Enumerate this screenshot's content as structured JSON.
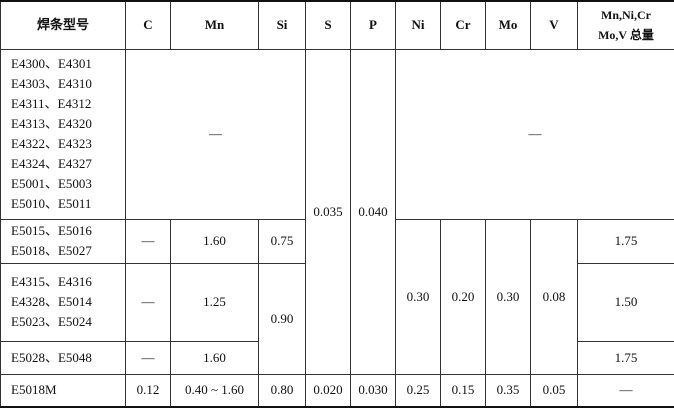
{
  "table": {
    "header": [
      "焊条型号",
      "C",
      "Mn",
      "Si",
      "S",
      "P",
      "Ni",
      "Cr",
      "Mo",
      "V",
      [
        "Mn,Ni,Cr",
        "Mo,V 总量"
      ]
    ],
    "rows": [
      [
        [
          "E4300、E4301",
          "E4303、E4310",
          "E4311、E4312",
          "E4313、E4320",
          "E4322、E4323",
          "E4324、E4327",
          "E5001、E5003",
          "E5010、E5011"
        ],
        "—",
        "0.035",
        "0.040",
        "—"
      ],
      [
        [
          "E5015、E5016",
          "E5018、E5027"
        ],
        "—",
        "1.60",
        "0.75",
        "0.30",
        "0.20",
        "0.30",
        "0.08",
        "1.75"
      ],
      [
        [
          "E4315、E4316",
          "E4328、E5014",
          "E5023、E5024"
        ],
        "—",
        "1.25",
        "0.90",
        "1.50"
      ],
      [
        [
          "E5028、E5048"
        ],
        "—",
        "1.60",
        "1.75"
      ],
      [
        "E5018M",
        "0.12",
        "0.40 ~ 1.60",
        "0.80",
        "0.020",
        "0.030",
        "0.25",
        "0.15",
        "0.35",
        "0.05",
        "—"
      ]
    ]
  }
}
